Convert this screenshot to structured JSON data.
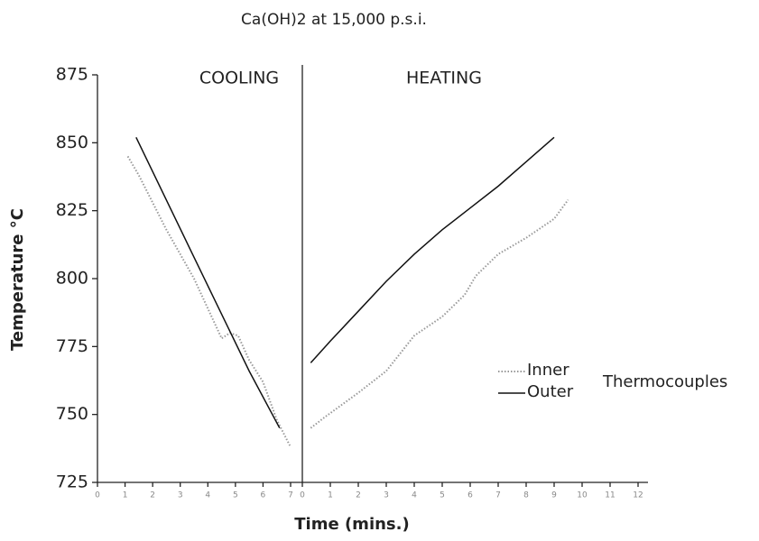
{
  "chart_data": [
    {
      "type": "line",
      "title": "Ca(OH)2 at 15,000 p.s.i.",
      "subtitle": "COOLING",
      "ylabel": "Temperature °C",
      "xlabel": "Time (mins.)",
      "xlim": [
        0,
        7
      ],
      "xticks": [
        0,
        1,
        2,
        3,
        4,
        5,
        6,
        7
      ],
      "ylim": [
        725,
        875
      ],
      "yticks": [
        725,
        750,
        775,
        800,
        825,
        850,
        875
      ],
      "series": [
        {
          "name": "Inner",
          "color": "#999999",
          "style": "dotted",
          "x": [
            1.1,
            1.5,
            2.5,
            3.5,
            4.5,
            4.8,
            5.1,
            5.5,
            6,
            6.5,
            7
          ],
          "values": [
            845,
            838,
            818,
            800,
            778,
            780,
            779,
            770,
            762,
            748,
            738
          ]
        },
        {
          "name": "Outer",
          "color": "#111111",
          "style": "solid",
          "x": [
            1.4,
            3.4,
            5.5,
            6.6
          ],
          "values": [
            852,
            810,
            766,
            745
          ]
        }
      ]
    },
    {
      "type": "line",
      "subtitle": "HEATING",
      "legend_title": "Thermocouples",
      "xlim": [
        0,
        12
      ],
      "xticks": [
        0,
        1,
        2,
        3,
        4,
        5,
        6,
        7,
        8,
        9,
        10,
        11,
        12
      ],
      "ylim": [
        725,
        875
      ],
      "series": [
        {
          "name": "Inner",
          "color": "#999999",
          "style": "dotted",
          "x": [
            0.3,
            0.8,
            2,
            3,
            4,
            5,
            5.8,
            6.2,
            7,
            8,
            9,
            9.5
          ],
          "values": [
            745,
            749,
            758,
            766,
            779,
            786,
            794,
            801,
            809,
            815,
            822,
            829
          ]
        },
        {
          "name": "Outer",
          "color": "#111111",
          "style": "solid",
          "x": [
            0.3,
            1,
            2,
            3,
            4,
            5,
            6,
            7,
            8,
            9
          ],
          "values": [
            769,
            777,
            788,
            799,
            809,
            818,
            826,
            834,
            843,
            852
          ]
        }
      ]
    }
  ]
}
